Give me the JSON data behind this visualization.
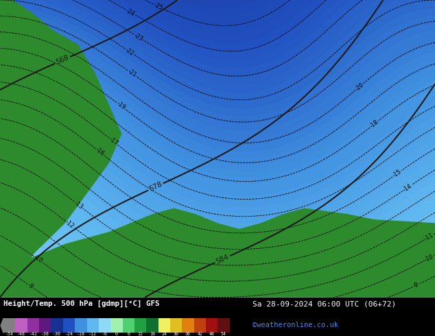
{
  "title_left": "Height/Temp. 500 hPa [gdmp][°C] GFS",
  "title_right": "Sa 28-09-2024 06:00 UTC (06+72)",
  "credit": "©weatheronline.co.uk",
  "colorbar_values": [
    -54,
    -48,
    -42,
    -38,
    -30,
    -24,
    -18,
    -12,
    -6,
    0,
    6,
    12,
    18,
    24,
    30,
    36,
    42,
    48,
    54
  ],
  "colorbar_colors": [
    "#808080",
    "#c060c0",
    "#9030a0",
    "#601880",
    "#183090",
    "#2050c0",
    "#4090e0",
    "#60b8f0",
    "#90d8f8",
    "#a0f0b0",
    "#50d070",
    "#20a040",
    "#107030",
    "#f0f060",
    "#e0c020",
    "#e08010",
    "#c04010",
    "#a01010",
    "#601010"
  ],
  "fig_width": 6.34,
  "fig_height": 4.9,
  "dpi": 100,
  "temp_cmap_colors": [
    [
      0.0,
      "#808080"
    ],
    [
      0.055,
      "#c060c0"
    ],
    [
      0.11,
      "#9030a0"
    ],
    [
      0.165,
      "#601880"
    ],
    [
      0.22,
      "#183090"
    ],
    [
      0.275,
      "#2050c0"
    ],
    [
      0.33,
      "#4090e0"
    ],
    [
      0.385,
      "#60b8f0"
    ],
    [
      0.44,
      "#90d8f8"
    ],
    [
      0.495,
      "#a0f0b0"
    ],
    [
      0.55,
      "#50d070"
    ],
    [
      0.605,
      "#20a040"
    ],
    [
      0.66,
      "#107030"
    ],
    [
      0.715,
      "#f0f060"
    ],
    [
      0.77,
      "#e0c020"
    ],
    [
      0.825,
      "#e08010"
    ],
    [
      0.88,
      "#c04010"
    ],
    [
      0.935,
      "#a01010"
    ],
    [
      1.0,
      "#601010"
    ]
  ]
}
